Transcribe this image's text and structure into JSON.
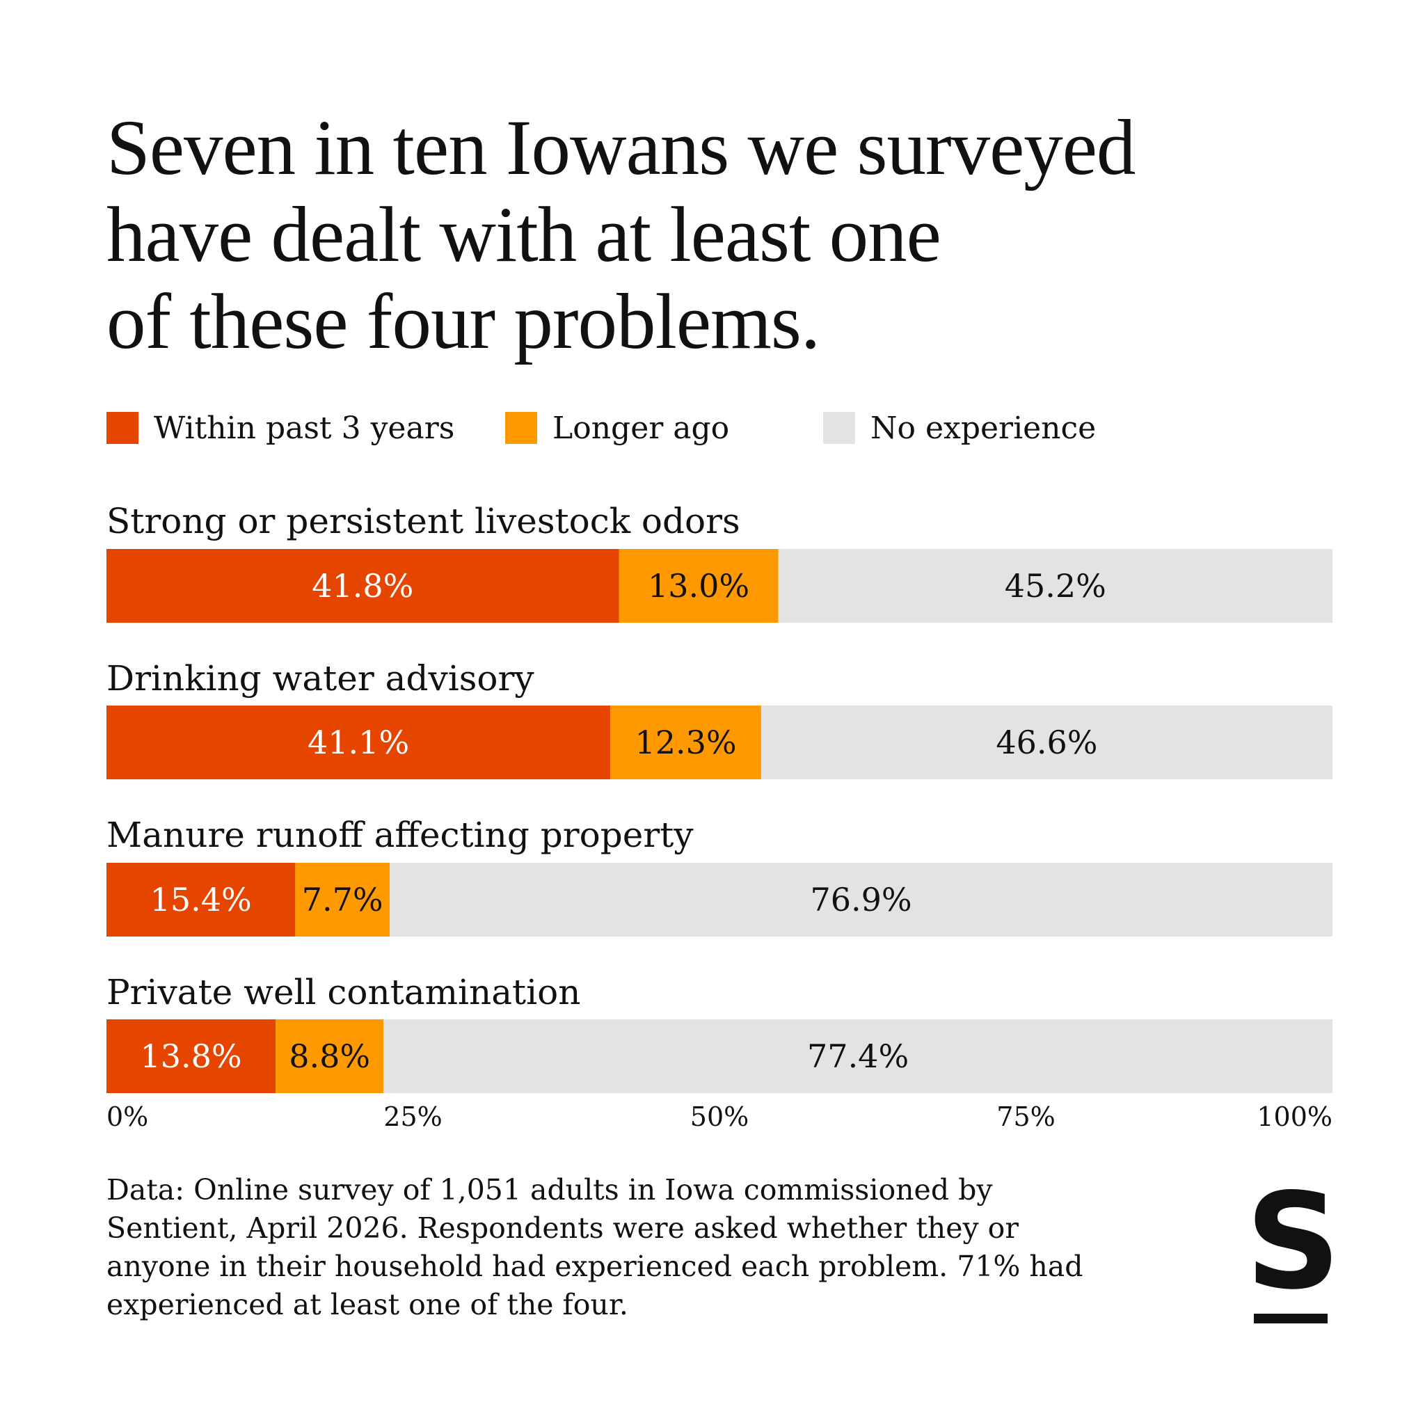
{
  "title": {
    "lines": [
      "Seven in ten Iowans we surveyed",
      "have dealt with at least one",
      "of these four problems."
    ]
  },
  "legend": [
    {
      "label": "Within past 3 years",
      "color": "#E64500"
    },
    {
      "label": "Longer ago",
      "color": "#FF9900"
    },
    {
      "label": "No experience",
      "color": "#E3E3E3"
    }
  ],
  "chart_data": {
    "type": "bar",
    "orientation": "horizontal",
    "stacked": true,
    "categories": [
      "Strong or persistent livestock odors",
      "Drinking water advisory",
      "Manure runoff affecting property",
      "Private well contamination"
    ],
    "series": [
      {
        "name": "Within past 3 years",
        "values": [
          41.8,
          41.1,
          15.4,
          13.8
        ],
        "color": "#E64500",
        "label_color": "#ffffff"
      },
      {
        "name": "Longer ago",
        "values": [
          13.0,
          12.3,
          7.7,
          8.8
        ],
        "color": "#FF9900",
        "label_color": "#111111"
      },
      {
        "name": "No experience",
        "values": [
          45.2,
          46.6,
          76.9,
          77.4
        ],
        "color": "#E3E3E3",
        "label_color": "#111111"
      }
    ],
    "value_labels": [
      [
        "41.8%",
        "13.0%",
        "45.2%"
      ],
      [
        "41.1%",
        "12.3%",
        "46.6%"
      ],
      [
        "15.4%",
        "7.7%",
        "76.9%"
      ],
      [
        "13.8%",
        "8.8%",
        "77.4%"
      ]
    ],
    "xlim": [
      0,
      100
    ],
    "xticks": [
      0,
      25,
      50,
      75,
      100
    ],
    "xtick_labels": [
      "0%",
      "25%",
      "50%",
      "75%",
      "100%"
    ],
    "legend_position": "top",
    "grid": false
  },
  "note": "Data: Online survey of 1,051 adults in Iowa commissioned by Sentient, April 2026. Respondents were asked whether they or anyone in their household had experienced each problem. 71% had experienced at least one of the four.",
  "logo": {
    "letter": "S"
  }
}
